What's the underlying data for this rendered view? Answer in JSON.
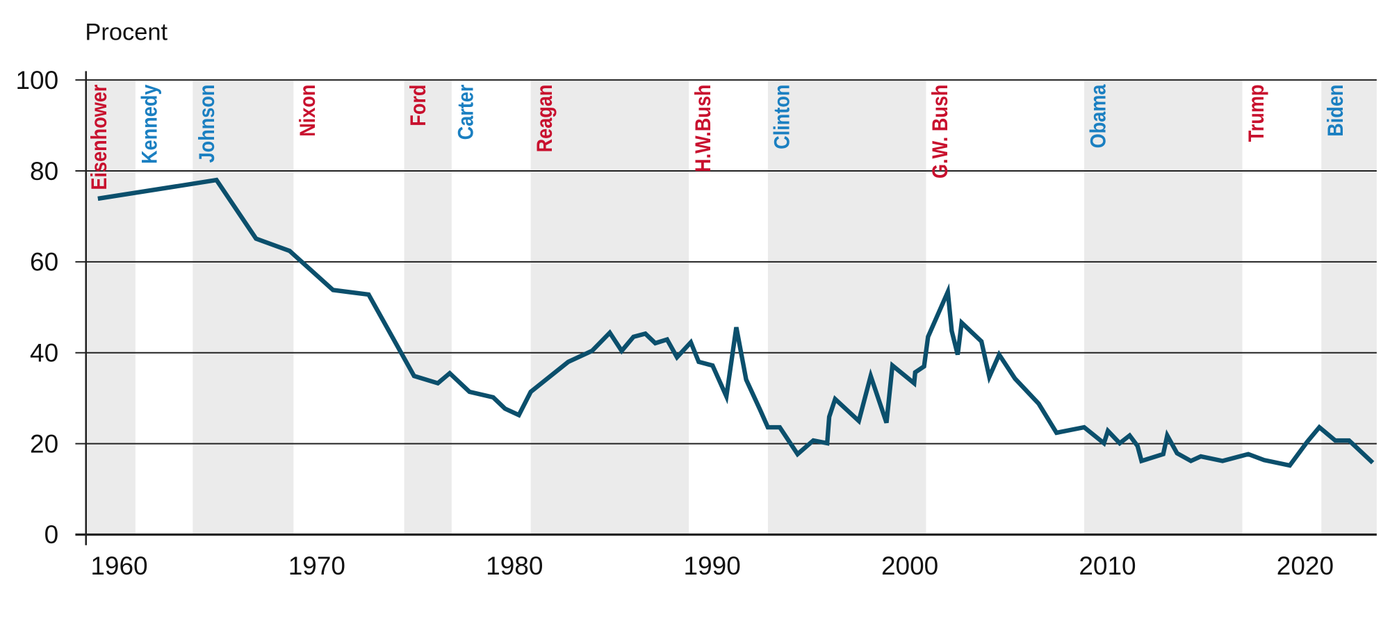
{
  "chart_data": {
    "type": "line",
    "title": "",
    "ylabel": "Procent",
    "xlabel": "",
    "xlim": [
      1958.5,
      2023.8
    ],
    "ylim": [
      0,
      100
    ],
    "yticks": [
      0,
      20,
      40,
      60,
      80,
      100
    ],
    "xticks": [
      1960,
      1970,
      1980,
      1990,
      2000,
      2010,
      2020
    ],
    "grid": true,
    "line_color": "#0b4f6c",
    "series": [
      {
        "x": [
          1959.1,
          1965.1,
          1967.1,
          1968.8,
          1971.0,
          1972.8,
          1975.1,
          1976.3,
          1976.9,
          1977.9,
          1979.1,
          1979.7,
          1980.4,
          1981.0,
          1982.9,
          1984.1,
          1985.0,
          1985.6,
          1986.2,
          1986.8,
          1987.3,
          1987.9,
          1988.4,
          1989.1,
          1989.5,
          1990.2,
          1990.9,
          1991.4,
          1991.9,
          1992.6,
          1993.0,
          1993.6,
          1994.5,
          1995.3,
          1996.0,
          1996.1,
          1996.4,
          1997.6,
          1998.2,
          1999.0,
          1999.3,
          2000.4,
          2000.45,
          2000.9,
          2001.1,
          2002.1,
          2002.3,
          2002.6,
          2002.8,
          2003.8,
          2004.2,
          2004.7,
          2005.5,
          2006.7,
          2007.6,
          2009.0,
          2010.0,
          2010.2,
          2010.8,
          2011.3,
          2011.7,
          2011.9,
          2013.0,
          2013.2,
          2013.7,
          2014.4,
          2014.9,
          2016.0,
          2017.3,
          2018.1,
          2019.4,
          2020.3,
          2020.9,
          2021.7,
          2022.4,
          2023.6
        ],
        "y": [
          73.9,
          78,
          65.1,
          62.4,
          53.8,
          52.8,
          34.9,
          33.3,
          35.5,
          31.4,
          30.2,
          27.7,
          26.3,
          31.4,
          38,
          40.4,
          44.4,
          40.4,
          43.5,
          44.2,
          42.1,
          42.9,
          39,
          42.3,
          38,
          37.2,
          30.4,
          45.6,
          34.1,
          27.5,
          23.6,
          23.6,
          17.7,
          20.7,
          20.1,
          25.9,
          29.8,
          25,
          34.9,
          24.6,
          37.2,
          33.3,
          35.7,
          37,
          43.5,
          53.4,
          44.8,
          39.6,
          46.6,
          42.5,
          34.7,
          39.6,
          34.3,
          28.8,
          22.4,
          23.6,
          20.1,
          22.8,
          20.1,
          21.8,
          19.5,
          16.2,
          17.7,
          21.8,
          17.9,
          16.2,
          17.2,
          16.2,
          17.7,
          16.4,
          15.2,
          20.5,
          23.6,
          20.7,
          20.7,
          15.8
        ]
      }
    ],
    "party_colors": {
      "R": "#c8102e",
      "D": "#1a7fc1"
    },
    "shade_color": "#ebebeb",
    "presidents": [
      {
        "name": "Eisenhower",
        "party": "R",
        "start": 1958.5,
        "end": 1961,
        "shaded": true
      },
      {
        "name": "Kennedy",
        "party": "D",
        "start": 1961,
        "end": 1963.9,
        "shaded": false
      },
      {
        "name": "Johnson",
        "party": "D",
        "start": 1963.9,
        "end": 1969,
        "shaded": true
      },
      {
        "name": "Nixon",
        "party": "R",
        "start": 1969,
        "end": 1974.6,
        "shaded": false
      },
      {
        "name": "Ford",
        "party": "R",
        "start": 1974.6,
        "end": 1977,
        "shaded": true
      },
      {
        "name": "Carter",
        "party": "D",
        "start": 1977,
        "end": 1981,
        "shaded": false
      },
      {
        "name": "Reagan",
        "party": "R",
        "start": 1981,
        "end": 1989,
        "shaded": true
      },
      {
        "name": "H.W.Bush",
        "party": "R",
        "start": 1989,
        "end": 1993,
        "shaded": false
      },
      {
        "name": "Clinton",
        "party": "D",
        "start": 1993,
        "end": 2001,
        "shaded": true
      },
      {
        "name": "G.W. Bush",
        "party": "R",
        "start": 2001,
        "end": 2009,
        "shaded": false
      },
      {
        "name": "Obama",
        "party": "D",
        "start": 2009,
        "end": 2017,
        "shaded": true
      },
      {
        "name": "Trump",
        "party": "R",
        "start": 2017,
        "end": 2021,
        "shaded": false
      },
      {
        "name": "Biden",
        "party": "D",
        "start": 2021,
        "end": 2023.8,
        "shaded": true
      }
    ]
  }
}
